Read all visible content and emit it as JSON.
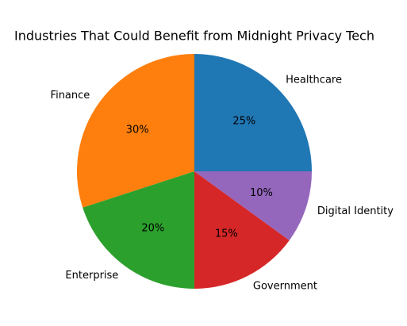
{
  "chart_data": {
    "type": "pie",
    "title": "Industries That Could Benefit from Midnight Privacy Tech",
    "categories": [
      "Healthcare",
      "Finance",
      "Enterprise",
      "Government",
      "Digital Identity"
    ],
    "values": [
      25,
      30,
      20,
      15,
      10
    ],
    "value_labels": [
      "25%",
      "30%",
      "20%",
      "15%",
      "10%"
    ],
    "colors": [
      "#1f77b4",
      "#ff7f0e",
      "#2ca02c",
      "#d62728",
      "#9467bd"
    ]
  }
}
